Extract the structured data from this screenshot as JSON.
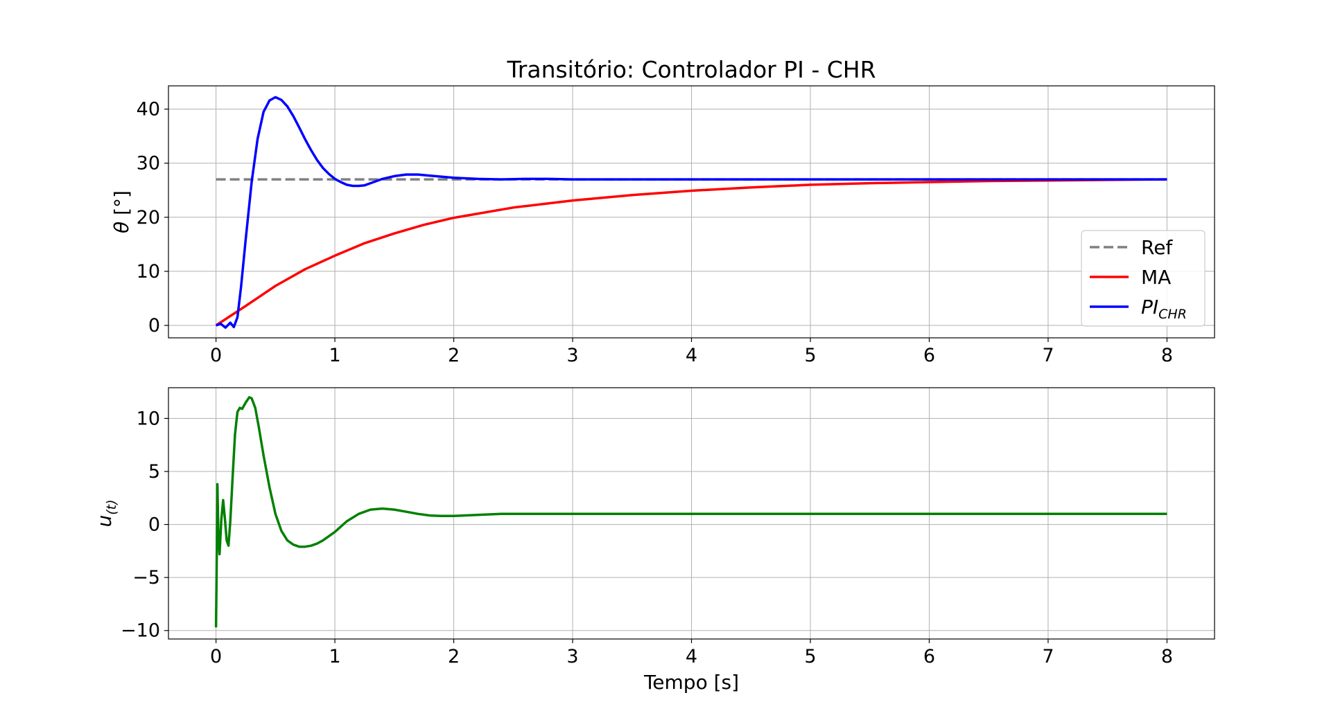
{
  "chart_data": [
    {
      "type": "line",
      "title": "Transitório: Controlador PI - CHR",
      "ylabel": "θ [°]",
      "xlabel": "",
      "xlim": [
        -0.4,
        8.4
      ],
      "ylim": [
        -2.3,
        44.3
      ],
      "xticks": [
        0,
        1,
        2,
        3,
        4,
        5,
        6,
        7,
        8
      ],
      "yticks": [
        0,
        10,
        20,
        30,
        40
      ],
      "grid": true,
      "legend": "lower-right",
      "series": [
        {
          "name": "Ref",
          "color": "#808080",
          "style": "dashed",
          "x": [
            0,
            8
          ],
          "y": [
            27,
            27
          ]
        },
        {
          "name": "MA",
          "color": "#ff0000",
          "style": "solid",
          "x": [
            0,
            0.25,
            0.5,
            0.75,
            1.0,
            1.25,
            1.5,
            1.75,
            2.0,
            2.5,
            3.0,
            3.5,
            4.0,
            4.5,
            5.0,
            5.5,
            6.0,
            6.5,
            7.0,
            7.5,
            8.0
          ],
          "y": [
            0,
            3.6,
            7.3,
            10.4,
            12.9,
            15.2,
            17.0,
            18.6,
            19.9,
            21.8,
            23.1,
            24.1,
            24.9,
            25.5,
            26.0,
            26.3,
            26.5,
            26.7,
            26.8,
            26.9,
            27.0
          ]
        },
        {
          "name": "PI_CHR",
          "color": "#0000ff",
          "style": "solid",
          "x": [
            0,
            0.04,
            0.08,
            0.12,
            0.15,
            0.18,
            0.21,
            0.25,
            0.3,
            0.35,
            0.4,
            0.45,
            0.5,
            0.55,
            0.6,
            0.65,
            0.7,
            0.75,
            0.8,
            0.85,
            0.9,
            0.95,
            1.0,
            1.05,
            1.1,
            1.15,
            1.2,
            1.25,
            1.3,
            1.4,
            1.5,
            1.6,
            1.7,
            1.8,
            1.9,
            2.0,
            2.2,
            2.4,
            2.6,
            2.8,
            3.0,
            4.0,
            5.0,
            6.0,
            7.0,
            8.0
          ],
          "y": [
            0,
            0.3,
            -0.4,
            0.5,
            -0.3,
            1.5,
            7.0,
            16.0,
            26.5,
            34.5,
            39.5,
            41.6,
            42.2,
            41.7,
            40.5,
            38.7,
            36.6,
            34.4,
            32.4,
            30.6,
            29.1,
            28.0,
            27.1,
            26.5,
            26.0,
            25.8,
            25.8,
            25.9,
            26.3,
            27.1,
            27.6,
            27.9,
            27.9,
            27.7,
            27.5,
            27.3,
            27.1,
            27.0,
            27.1,
            27.1,
            27.0,
            27.0,
            27.0,
            27.0,
            27.0,
            27.0
          ]
        }
      ]
    },
    {
      "type": "line",
      "title": "",
      "ylabel": "u(t)",
      "xlabel": "Tempo [s]",
      "xlim": [
        -0.4,
        8.4
      ],
      "ylim": [
        -10.8,
        12.9
      ],
      "xticks": [
        0,
        1,
        2,
        3,
        4,
        5,
        6,
        7,
        8
      ],
      "yticks": [
        10,
        5,
        0,
        -5,
        -10
      ],
      "grid": true,
      "series": [
        {
          "name": "",
          "color": "#008000",
          "style": "solid",
          "x": [
            0,
            0.005,
            0.012,
            0.02,
            0.03,
            0.045,
            0.06,
            0.075,
            0.09,
            0.105,
            0.12,
            0.14,
            0.16,
            0.18,
            0.2,
            0.22,
            0.25,
            0.28,
            0.3,
            0.33,
            0.36,
            0.4,
            0.45,
            0.5,
            0.55,
            0.6,
            0.65,
            0.7,
            0.75,
            0.8,
            0.85,
            0.9,
            1.0,
            1.1,
            1.2,
            1.3,
            1.4,
            1.5,
            1.6,
            1.7,
            1.8,
            1.9,
            2.0,
            2.2,
            2.4,
            2.6,
            2.8,
            3.0,
            4.0,
            5.0,
            6.0,
            7.0,
            8.0
          ],
          "y": [
            -9.7,
            -5.0,
            3.8,
            -1.0,
            -2.8,
            0.5,
            2.3,
            0.5,
            -1.5,
            -2.0,
            0.3,
            4.5,
            8.5,
            10.6,
            11.0,
            10.9,
            11.5,
            12.0,
            11.9,
            11.0,
            9.2,
            6.5,
            3.5,
            1.0,
            -0.6,
            -1.5,
            -1.9,
            -2.1,
            -2.1,
            -2.0,
            -1.8,
            -1.5,
            -0.7,
            0.3,
            1.0,
            1.4,
            1.5,
            1.4,
            1.2,
            1.0,
            0.85,
            0.8,
            0.8,
            0.9,
            1.0,
            1.0,
            1.0,
            1.0,
            1.0,
            1.0,
            1.0,
            1.0,
            1.0
          ]
        }
      ]
    }
  ]
}
